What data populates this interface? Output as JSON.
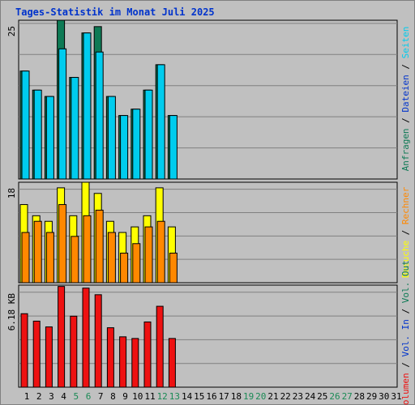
{
  "title": "Tages-Statistik im Monat Juli 2025",
  "colors": {
    "background": "#c0c0c0",
    "title": "#0033cc",
    "hits": "#0e7a55",
    "files": "#00ccee",
    "pages": "#00ccee",
    "visits": "#ffff00",
    "sites": "#ff8800",
    "kbytes": "#ee1111",
    "weekday_label": "#000000",
    "weekend_label": "#1a8a55"
  },
  "chart_data": [
    {
      "type": "bar",
      "name": "hits-files-pages",
      "max_label": "25",
      "ylim": [
        0,
        25
      ],
      "grid": true,
      "legend_placement": "right",
      "legend": [
        {
          "label": "Anfragen",
          "color_key": "hits"
        },
        {
          "label": "Dateien",
          "color_key": "title"
        },
        {
          "label": "Seiten",
          "color_key": "files"
        }
      ],
      "series": [
        {
          "key": "hits",
          "values": [
            17,
            14,
            13,
            25,
            16,
            23,
            24,
            13,
            10,
            11,
            14,
            18,
            10
          ]
        },
        {
          "key": "files",
          "values": [
            17,
            14,
            13,
            20.5,
            16,
            23,
            20,
            13,
            10,
            11,
            14,
            18,
            10
          ]
        }
      ]
    },
    {
      "type": "bar",
      "name": "visits-sites",
      "max_label": "18",
      "ylim": [
        0,
        18
      ],
      "grid": true,
      "legend_placement": "right",
      "legend": [
        {
          "label": "Besuche",
          "color_key": "visits"
        },
        {
          "label": "Rechner",
          "color_key": "sites"
        }
      ],
      "series": [
        {
          "key": "visits",
          "values": [
            14,
            12,
            11,
            17,
            12,
            18,
            16,
            11,
            9,
            10,
            12,
            17,
            10
          ]
        },
        {
          "key": "sites",
          "values": [
            9,
            11,
            9,
            14,
            8.3,
            12,
            13,
            9,
            5.3,
            7,
            10,
            11,
            5.3
          ]
        }
      ]
    },
    {
      "type": "bar",
      "name": "volume",
      "max_label": "6.18 KB",
      "ylim": [
        0,
        6.18
      ],
      "grid": true,
      "legend_placement": "right",
      "legend": [
        {
          "label": "Volumen",
          "color_key": "kbytes"
        },
        {
          "label": "Vol. In",
          "color_key": "title"
        },
        {
          "label": "Vol. Out",
          "color_key": "hits"
        }
      ],
      "series": [
        {
          "key": "kbytes",
          "values": [
            4.45,
            4.0,
            3.65,
            6.1,
            4.3,
            6.0,
            5.6,
            3.6,
            3.05,
            2.95,
            3.95,
            4.9,
            2.95
          ]
        }
      ]
    }
  ],
  "days": [
    {
      "label": "1",
      "weekend": false
    },
    {
      "label": "2",
      "weekend": false
    },
    {
      "label": "3",
      "weekend": false
    },
    {
      "label": "4",
      "weekend": false
    },
    {
      "label": "5",
      "weekend": true
    },
    {
      "label": "6",
      "weekend": true
    },
    {
      "label": "7",
      "weekend": false
    },
    {
      "label": "8",
      "weekend": false
    },
    {
      "label": "9",
      "weekend": false
    },
    {
      "label": "10",
      "weekend": false
    },
    {
      "label": "11",
      "weekend": false
    },
    {
      "label": "12",
      "weekend": true
    },
    {
      "label": "13",
      "weekend": true
    },
    {
      "label": "14",
      "weekend": false
    },
    {
      "label": "15",
      "weekend": false
    },
    {
      "label": "16",
      "weekend": false
    },
    {
      "label": "17",
      "weekend": false
    },
    {
      "label": "18",
      "weekend": false
    },
    {
      "label": "19",
      "weekend": true
    },
    {
      "label": "20",
      "weekend": true
    },
    {
      "label": "21",
      "weekend": false
    },
    {
      "label": "22",
      "weekend": false
    },
    {
      "label": "23",
      "weekend": false
    },
    {
      "label": "24",
      "weekend": false
    },
    {
      "label": "25",
      "weekend": false
    },
    {
      "label": "26",
      "weekend": true
    },
    {
      "label": "27",
      "weekend": true
    },
    {
      "label": "28",
      "weekend": false
    },
    {
      "label": "29",
      "weekend": false
    },
    {
      "label": "30",
      "weekend": false
    },
    {
      "label": "31",
      "weekend": false
    }
  ]
}
